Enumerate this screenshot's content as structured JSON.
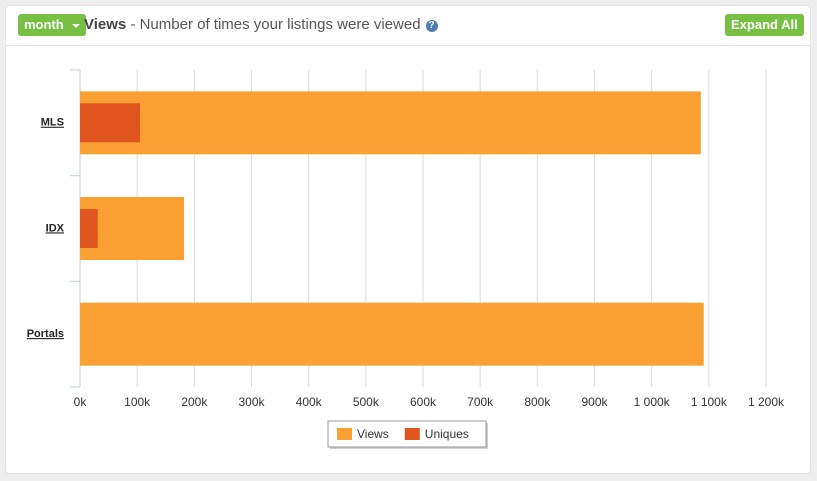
{
  "ui": {
    "period_button": "month",
    "title": "Views",
    "subtitle": "- Number of times your listings were viewed",
    "help_icon": "?",
    "expand_button": "Expand All"
  },
  "chart_data": {
    "type": "bar",
    "orientation": "horizontal",
    "overlap": true,
    "categories": [
      "MLS",
      "IDX",
      "Portals"
    ],
    "series": [
      {
        "name": "Views",
        "color": "#fba134",
        "values": [
          1086000,
          182000,
          1091000
        ]
      },
      {
        "name": "Uniques",
        "color": "#e0561e",
        "values": [
          105000,
          31000,
          0
        ]
      }
    ],
    "xlim": [
      0,
      1200000
    ],
    "xticks": [
      {
        "value": 0,
        "label": "0k"
      },
      {
        "value": 100000,
        "label": "100k"
      },
      {
        "value": 200000,
        "label": "200k"
      },
      {
        "value": 300000,
        "label": "300k"
      },
      {
        "value": 400000,
        "label": "400k"
      },
      {
        "value": 500000,
        "label": "500k"
      },
      {
        "value": 600000,
        "label": "600k"
      },
      {
        "value": 700000,
        "label": "700k"
      },
      {
        "value": 800000,
        "label": "800k"
      },
      {
        "value": 900000,
        "label": "900k"
      },
      {
        "value": 1000000,
        "label": "1 000k"
      },
      {
        "value": 1100000,
        "label": "1 100k"
      },
      {
        "value": 1200000,
        "label": "1 200k"
      }
    ],
    "grid": true,
    "legend": "bottom"
  }
}
